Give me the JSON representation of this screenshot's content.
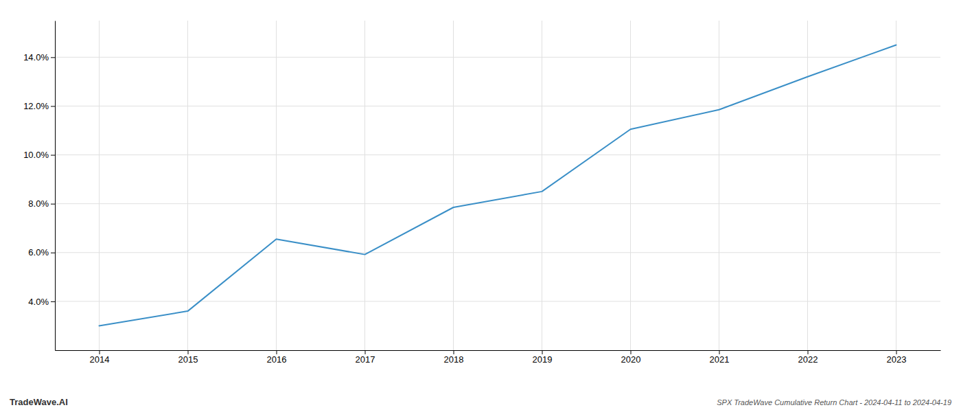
{
  "chart_data": {
    "type": "line",
    "title": "SPX TradeWave Cumulative Return Chart - 2024-04-11 to 2024-04-19",
    "annotations": [
      "TradeWave.AI"
    ],
    "x": [
      2014,
      2015,
      2016,
      2017,
      2018,
      2019,
      2020,
      2021,
      2022,
      2023
    ],
    "values": [
      3.0,
      3.6,
      6.55,
      5.92,
      7.85,
      8.5,
      11.05,
      11.85,
      13.2,
      14.5
    ],
    "color": "#3a8fc7",
    "xlim": [
      2013.5,
      2023.5
    ],
    "ylim": [
      2.0,
      15.5
    ],
    "xticks": [
      2014,
      2015,
      2016,
      2017,
      2018,
      2019,
      2020,
      2021,
      2022,
      2023
    ],
    "yticks": [
      {
        "value": 4.0,
        "label": "4.0%"
      },
      {
        "value": 6.0,
        "label": "6.0%"
      },
      {
        "value": 8.0,
        "label": "8.0%"
      },
      {
        "value": 10.0,
        "label": "10.0%"
      },
      {
        "value": 12.0,
        "label": "12.0%"
      },
      {
        "value": 14.0,
        "label": "14.0%"
      }
    ],
    "grid": true
  }
}
